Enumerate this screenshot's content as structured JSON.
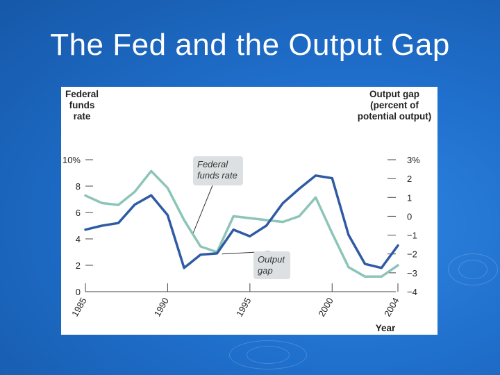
{
  "slide": {
    "title": "The Fed and the Output Gap"
  },
  "chart_data": {
    "type": "line",
    "title": "",
    "x": [
      1985,
      1986,
      1987,
      1988,
      1989,
      1990,
      1991,
      1992,
      1993,
      1994,
      1995,
      1996,
      1997,
      1998,
      1999,
      2000,
      2001,
      2002,
      2003,
      2004
    ],
    "xticks": [
      1985,
      1990,
      1995,
      2000,
      2004
    ],
    "xlabel": "Year",
    "xlim": [
      1985,
      2004
    ],
    "left_axis": {
      "title_lines": [
        "Federal",
        "funds",
        "rate"
      ],
      "ylim": [
        0,
        10
      ],
      "ticks": [
        0,
        2,
        4,
        6,
        8,
        10
      ],
      "tick_labels": [
        "0",
        "2",
        "4",
        "6",
        "8",
        "10%"
      ]
    },
    "right_axis": {
      "title_lines": [
        "Output gap",
        "(percent of",
        "potential output)"
      ],
      "ylim": [
        -4,
        3
      ],
      "ticks": [
        -4,
        -3,
        -2,
        -1,
        0,
        1,
        2,
        3
      ],
      "tick_labels": [
        "−4",
        "−3",
        "−2",
        "−1",
        "0",
        "1",
        "2",
        "3%"
      ]
    },
    "series": [
      {
        "name": "Federal funds rate",
        "axis": "left",
        "color": "#2f5aa4",
        "values": [
          4.7,
          5.0,
          5.2,
          6.6,
          7.3,
          5.8,
          1.8,
          2.8,
          2.9,
          4.7,
          4.2,
          5.0,
          6.7,
          7.8,
          8.8,
          8.6,
          4.3,
          2.1,
          1.8,
          3.5
        ]
      },
      {
        "name": "Output gap",
        "axis": "right",
        "color": "#8cc5b8",
        "values": [
          1.1,
          0.7,
          0.6,
          1.3,
          2.4,
          1.5,
          -0.2,
          -1.6,
          -1.9,
          0.0,
          -0.1,
          -0.2,
          -0.3,
          0.0,
          1.0,
          -0.9,
          -2.7,
          -3.2,
          -3.2,
          -2.6
        ]
      }
    ],
    "annotations": [
      {
        "lines": [
          "Federal",
          "funds rate"
        ],
        "points_to": "Federal funds rate"
      },
      {
        "lines": [
          "Output",
          "gap"
        ],
        "points_to": "Output gap"
      }
    ]
  }
}
